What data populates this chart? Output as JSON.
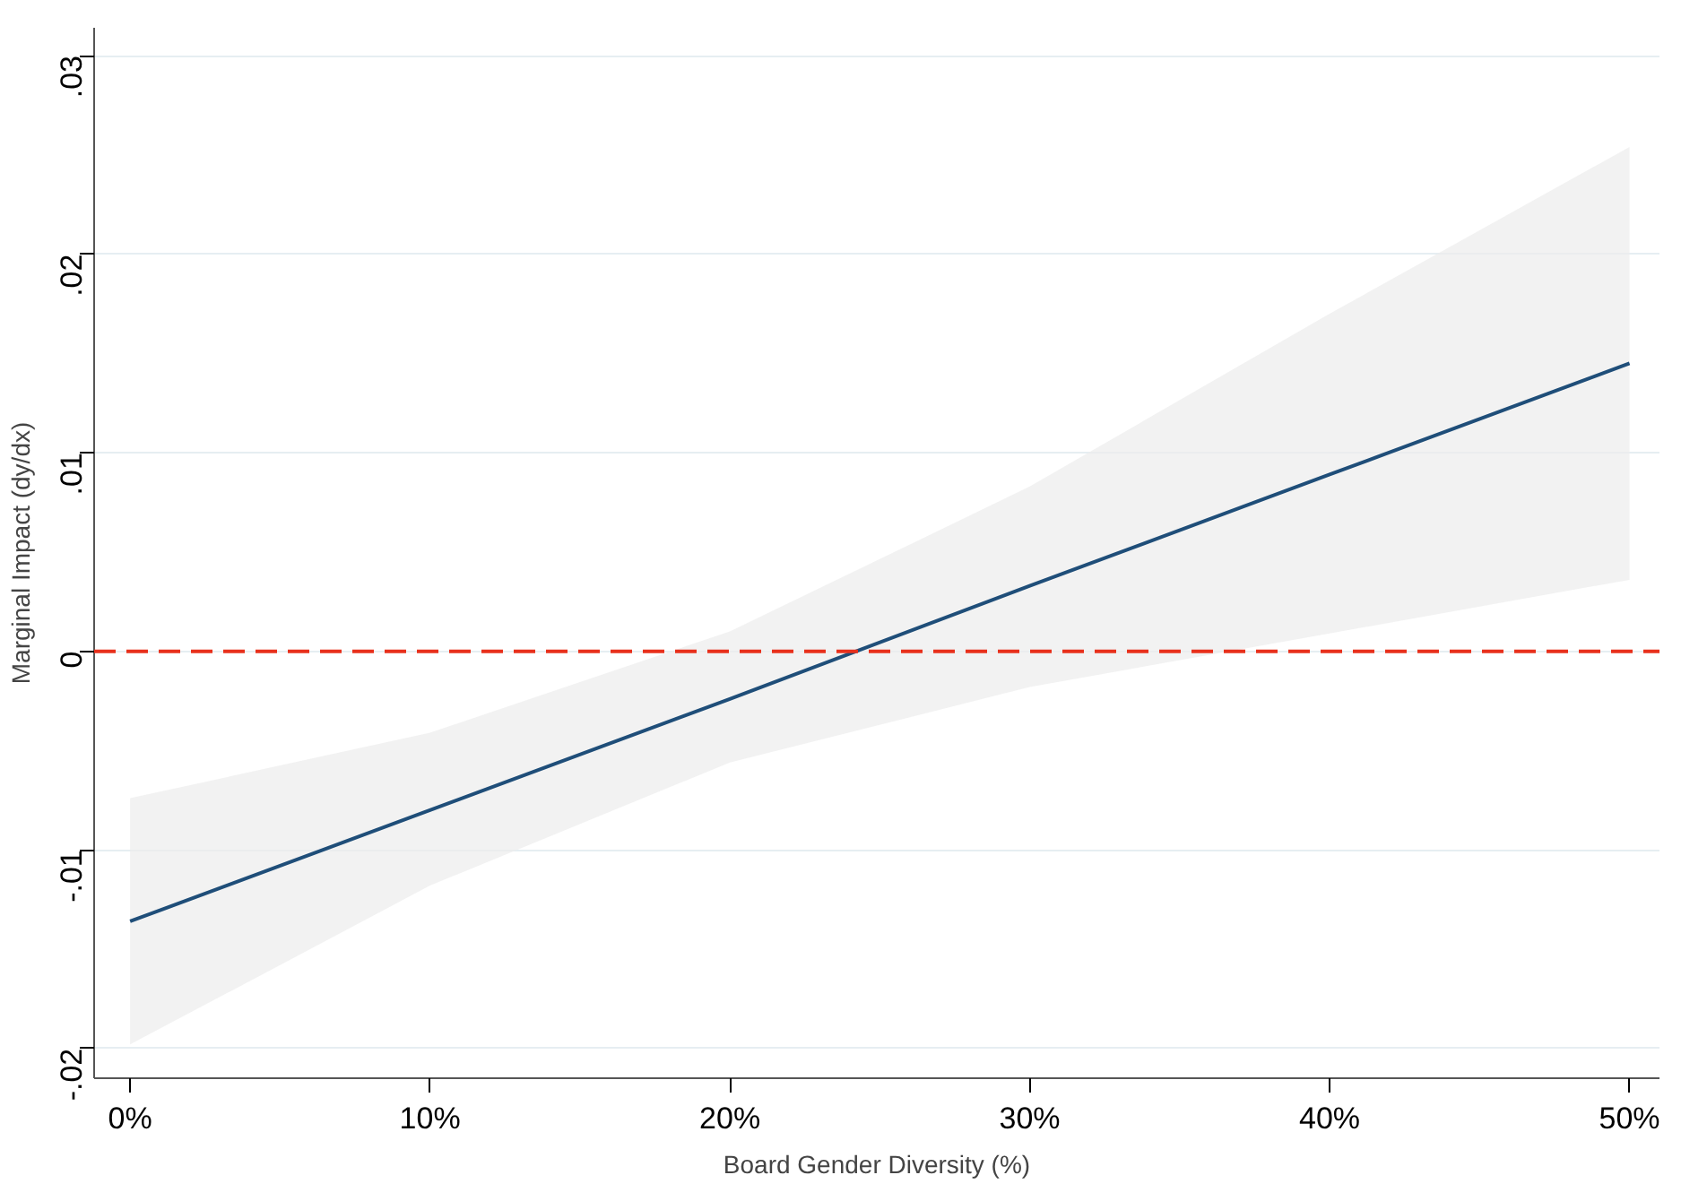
{
  "chart_data": {
    "type": "line",
    "xlabel": "Board Gender Diversity (%)",
    "ylabel": "Marginal Impact (dy/dx)",
    "x": [
      0,
      10,
      20,
      30,
      40,
      50
    ],
    "series": [
      {
        "color": "#1f4e79",
        "values": [
          -0.0136,
          -0.008,
          -0.0024,
          0.0033,
          0.0089,
          0.0145
        ],
        "lower": [
          -0.0198,
          -0.0118,
          -0.0056,
          -0.0018,
          0.0009,
          0.0036
        ],
        "upper": [
          -0.0074,
          -0.0041,
          0.001,
          0.0083,
          0.017,
          0.0254
        ]
      }
    ],
    "xlim": [
      -1.2,
      51
    ],
    "ylim": [
      -0.0215,
      0.0314
    ],
    "xticks": [
      {
        "value": 0,
        "label": "0%"
      },
      {
        "value": 10,
        "label": "10%"
      },
      {
        "value": 20,
        "label": "20%"
      },
      {
        "value": 30,
        "label": "30%"
      },
      {
        "value": 40,
        "label": "40%"
      },
      {
        "value": 50,
        "label": "50%"
      }
    ],
    "yticks": [
      {
        "value": -0.02,
        "label": "-.02"
      },
      {
        "value": -0.01,
        "label": "-.01"
      },
      {
        "value": 0,
        "label": "0"
      },
      {
        "value": 0.01,
        "label": ".01"
      },
      {
        "value": 0.02,
        "label": ".02"
      },
      {
        "value": 0.03,
        "label": ".03"
      }
    ],
    "ref_lines": [
      {
        "axis": "y",
        "value": 0,
        "color": "#e8301c",
        "line_style": "dashed"
      }
    ],
    "grid": "y"
  }
}
